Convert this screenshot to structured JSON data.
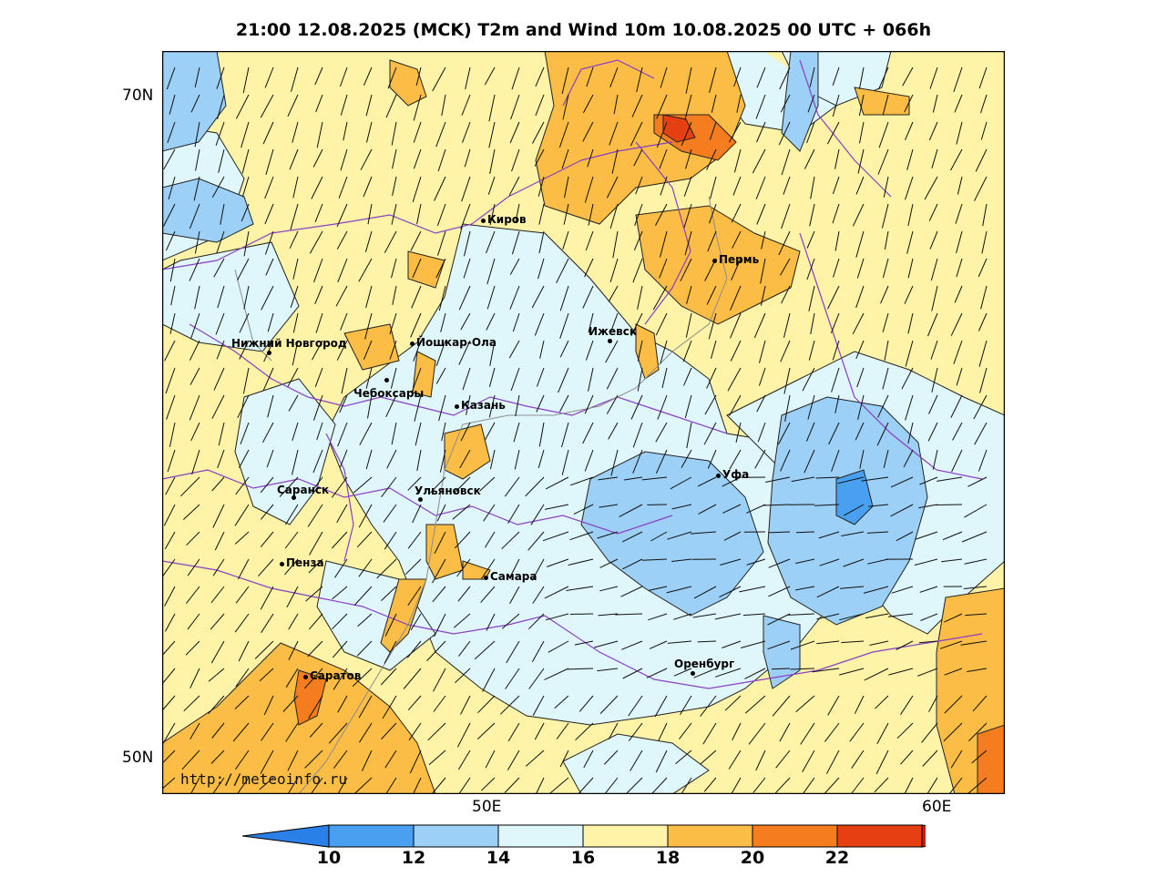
{
  "title": "21:00 12.08.2025 (MCK) T2m and Wind 10m 10.08.2025 00 UTC + 066h",
  "axes": {
    "lat_labels": [
      "70N",
      "50N"
    ],
    "lon_labels": [
      "50E",
      "60E"
    ]
  },
  "cities": [
    {
      "name": "Киров"
    },
    {
      "name": "Пермь"
    },
    {
      "name": "Нижний Новгород"
    },
    {
      "name": "Йошкар-Ола"
    },
    {
      "name": "Ижевск"
    },
    {
      "name": "Чебоксары"
    },
    {
      "name": "Казань"
    },
    {
      "name": "Уфа"
    },
    {
      "name": "Саранск"
    },
    {
      "name": "Ульяновск"
    },
    {
      "name": "Пенза"
    },
    {
      "name": "Самара"
    },
    {
      "name": "Оренбург"
    },
    {
      "name": "Саратов"
    }
  ],
  "watermark": "http://meteoinfo.ru",
  "colorbar": {
    "ticks": [
      "10",
      "12",
      "14",
      "16",
      "18",
      "20",
      "22"
    ],
    "colors": [
      "#2a7fe8",
      "#4aa0f0",
      "#9dd0f6",
      "#dff7fb",
      "#fff3a8",
      "#fbbd45",
      "#f57d1f",
      "#e64012",
      "#d11b0b"
    ]
  },
  "palette": {
    "below10": "#2a7fe8",
    "t10_12": "#4aa0f0",
    "t12_14": "#9dd0f6",
    "t14_16": "#dff7fb",
    "t16_18": "#fff3a8",
    "t18_20": "#fbbd45",
    "t20_22": "#f57d1f",
    "above22": "#e64012",
    "borders": "#8a3fc4",
    "rivers": "#8c8c8c"
  }
}
